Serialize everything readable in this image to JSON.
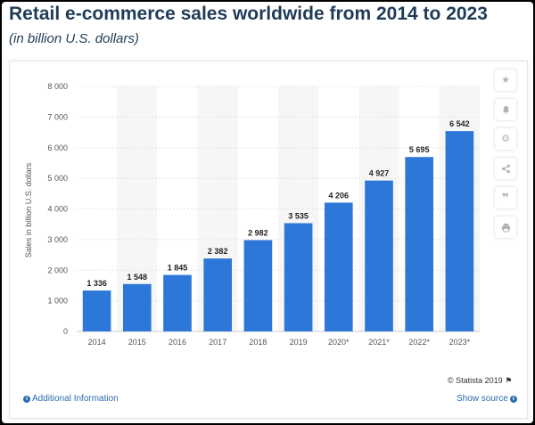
{
  "header": {
    "title": "Retail e-commerce sales worldwide from 2014 to 2023",
    "subtitle": "(in billion U.S. dollars)"
  },
  "chart_data": {
    "type": "bar",
    "categories": [
      "2014",
      "2015",
      "2016",
      "2017",
      "2018",
      "2019",
      "2020*",
      "2021*",
      "2022*",
      "2023*"
    ],
    "values": [
      1336,
      1548,
      1845,
      2382,
      2982,
      3535,
      4206,
      4927,
      5695,
      6542
    ],
    "value_labels": [
      "1 336",
      "1 548",
      "1 845",
      "2 382",
      "2 982",
      "3 535",
      "4 206",
      "4 927",
      "5 695",
      "6 542"
    ],
    "ylabel": "Sales in billion U.S. dollars",
    "ylim": [
      0,
      8000
    ],
    "yticks": [
      0,
      1000,
      2000,
      3000,
      4000,
      5000,
      6000,
      7000,
      8000
    ],
    "ytick_labels": [
      "0",
      "1 000",
      "2 000",
      "3 000",
      "4 000",
      "5 000",
      "6 000",
      "7 000",
      "8 000"
    ],
    "grid": true,
    "bar_color": "#2d77d9"
  },
  "toolbar": {
    "icons": [
      "star-icon",
      "bell-icon",
      "gear-icon",
      "share-icon",
      "quote-icon",
      "print-icon"
    ]
  },
  "footer": {
    "credit": "© Statista 2019",
    "additional_info": "Additional Information",
    "show_source": "Show source"
  }
}
